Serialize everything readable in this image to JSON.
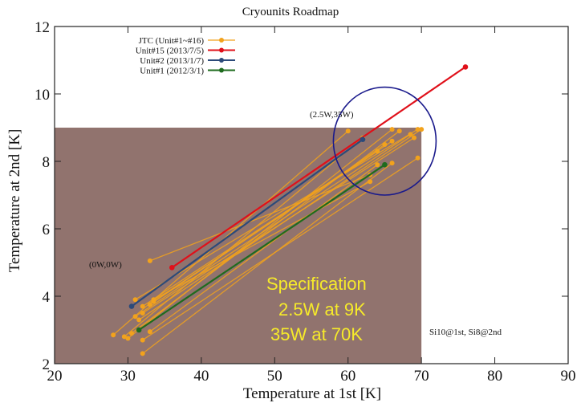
{
  "chart_data": {
    "type": "line",
    "title": "Cryounits Roadmap",
    "xlabel": "Temperature at 1st [K]",
    "ylabel": "Temperature at 2nd [K]",
    "xlim": [
      20,
      90
    ],
    "ylim": [
      2,
      12
    ],
    "xticks": [
      "20",
      "30",
      "40",
      "50",
      "60",
      "70",
      "80",
      "90"
    ],
    "yticks": [
      "2",
      "4",
      "6",
      "8",
      "10",
      "12"
    ],
    "grid": false,
    "legend_position": "top-left",
    "spec_region": {
      "x": [
        20,
        70
      ],
      "y": [
        2,
        9
      ],
      "color": "#8b6b66"
    },
    "series": [
      {
        "name": "JTC (Unit#1~#16)",
        "color": "#f2a21c",
        "lines": [
          [
            [
              28,
              2.85
            ],
            [
              60,
              8.9
            ]
          ],
          [
            [
              29.5,
              2.8
            ],
            [
              62,
              8.7
            ]
          ],
          [
            [
              30,
              2.75
            ],
            [
              66,
              8.95
            ]
          ],
          [
            [
              30.5,
              2.9
            ],
            [
              67,
              8.9
            ]
          ],
          [
            [
              31,
              3.4
            ],
            [
              68.5,
              8.8
            ]
          ],
          [
            [
              31.5,
              3.3
            ],
            [
              70,
              8.95
            ]
          ],
          [
            [
              31,
              3.9
            ],
            [
              69.5,
              8.95
            ]
          ],
          [
            [
              32,
              3.5
            ],
            [
              69,
              8.7
            ]
          ],
          [
            [
              32,
              3.7
            ],
            [
              66,
              8.6
            ]
          ],
          [
            [
              33,
              3.75
            ],
            [
              65,
              8.5
            ]
          ],
          [
            [
              33.5,
              3.85
            ],
            [
              64,
              8.3
            ]
          ],
          [
            [
              33,
              2.95
            ],
            [
              64,
              7.9
            ]
          ],
          [
            [
              32,
              2.3
            ],
            [
              66,
              7.95
            ]
          ],
          [
            [
              33,
              5.05
            ],
            [
              63,
              7.6
            ]
          ],
          [
            [
              33.5,
              3.9
            ],
            [
              63,
              7.4
            ]
          ],
          [
            [
              32,
              2.7
            ],
            [
              69.5,
              8.1
            ]
          ]
        ]
      },
      {
        "name": "Unit#15 (2013/7/5)",
        "color": "#e0101a",
        "points": [
          [
            36,
            4.85
          ],
          [
            76,
            10.8
          ]
        ]
      },
      {
        "name": "Unit#2 (2013/1/7)",
        "color": "#2c4a7a",
        "points": [
          [
            30.5,
            3.7
          ],
          [
            62,
            8.65
          ]
        ]
      },
      {
        "name": "Unit#1 (2012/3/1)",
        "color": "#1e6b1e",
        "points": [
          [
            31.5,
            3.0
          ],
          [
            65,
            7.9
          ]
        ]
      }
    ],
    "annotations": {
      "high_point": "(2.5W,35W)",
      "low_point": "(0W,0W)",
      "spec_line1": "Specification",
      "spec_line2": "2.5W at 9K",
      "spec_line3": "35W at 70K",
      "sensors": "Si10@1st, Si8@2nd"
    },
    "highlight_circle_color": "#1a1a8c",
    "spec_text_color": "#f6ea2a"
  }
}
